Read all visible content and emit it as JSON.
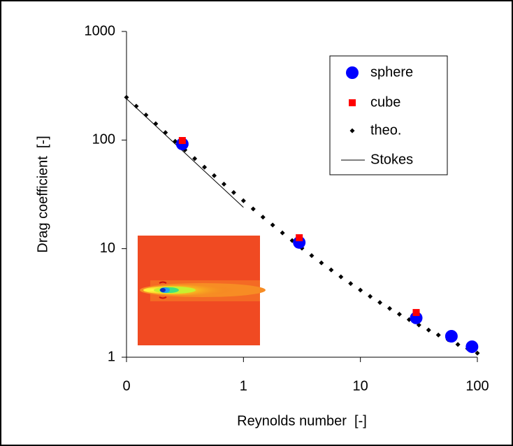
{
  "chart_data": {
    "type": "scatter",
    "xlabel": "Reynolds number  [-]",
    "ylabel": "Drag coefficient  [-]",
    "xscale": "log",
    "yscale": "log",
    "xlim": [
      0.1,
      100
    ],
    "ylim": [
      1,
      1000
    ],
    "xticks": [
      {
        "value": 0.1,
        "label": "0"
      },
      1,
      10,
      100
    ],
    "yticks": [
      1,
      10,
      100,
      1000
    ],
    "legend": "upper right",
    "series": [
      {
        "name": "sphere",
        "color": "#0000ff",
        "marker": "circle",
        "x": [
          0.3,
          3,
          30,
          60,
          90
        ],
        "values": [
          92,
          11.4,
          2.3,
          1.56,
          1.25
        ]
      },
      {
        "name": "cube",
        "color": "#ff0000",
        "marker": "square",
        "x": [
          0.3,
          3,
          30
        ],
        "values": [
          99,
          12.6,
          2.58
        ]
      },
      {
        "name": "theo.",
        "color": "#000000",
        "marker": "diamond",
        "x": [
          0.1,
          0.1212,
          0.1468,
          0.1778,
          0.2154,
          0.261,
          0.3162,
          0.3831,
          0.4642,
          0.5623,
          0.6813,
          0.8254,
          1,
          1.2115,
          1.4678,
          1.7783,
          2.1544,
          2.6102,
          3.1623,
          3.8312,
          4.6416,
          5.6234,
          6.8129,
          8.254,
          10,
          12.115,
          14.678,
          17.783,
          21.544,
          26.102,
          31.623,
          38.312,
          46.416,
          56.234,
          68.129,
          82.54,
          100
        ],
        "values": [
          247.4,
          205.0,
          170.1,
          141.2,
          117.2,
          97.4,
          81.1,
          67.5,
          56.3,
          47.0,
          39.3,
          32.9,
          27.6,
          23.2,
          19.5,
          16.5,
          13.97,
          11.86,
          10.1,
          8.63,
          7.4,
          6.37,
          5.5,
          4.77,
          4.15,
          3.63,
          3.19,
          2.81,
          2.49,
          2.22,
          1.98,
          1.78,
          1.6,
          1.45,
          1.31,
          1.2,
          1.09
        ]
      },
      {
        "name": "Stokes",
        "color": "#000000",
        "marker": "line",
        "x": [
          0.1,
          1
        ],
        "values": [
          240,
          24
        ]
      }
    ]
  }
}
